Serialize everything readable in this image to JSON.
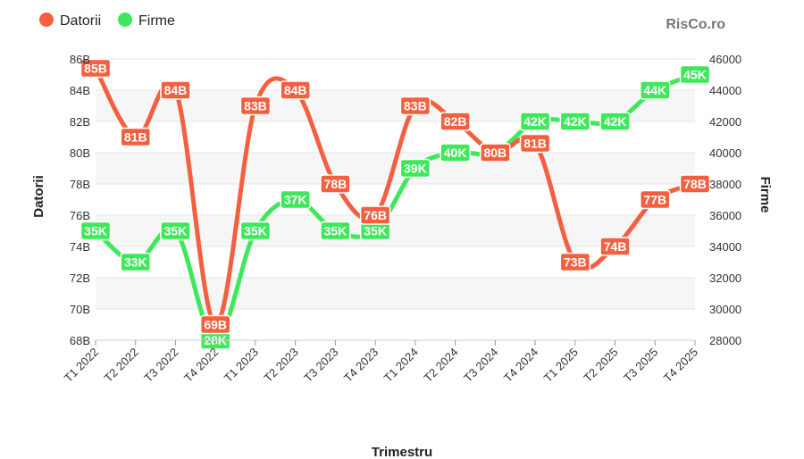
{
  "brand": "RisCo.ro",
  "colors": {
    "datorii": "#f4603f",
    "firme": "#3fe85a",
    "grid": "#e6e6e6",
    "band": "#f6f6f6"
  },
  "chart_data": {
    "type": "line",
    "categories": [
      "T1 2022",
      "T2 2022",
      "T3 2022",
      "T4 2022",
      "T1 2023",
      "T2 2023",
      "T3 2023",
      "T4 2023",
      "T1 2024",
      "T2 2024",
      "T3 2024",
      "T4 2024",
      "T1 2025",
      "T2 2025",
      "T3 2025",
      "T4 2025"
    ],
    "xlabel": "Trimestru",
    "ylabel_left": "Datorii",
    "ylabel_right": "Firme",
    "ylim_left": [
      68,
      86
    ],
    "ylim_right": [
      28000,
      46000
    ],
    "yticks_left": [
      "68B",
      "70B",
      "72B",
      "74B",
      "76B",
      "78B",
      "80B",
      "82B",
      "84B",
      "86B"
    ],
    "yticks_right": [
      "28000",
      "30000",
      "32000",
      "34000",
      "36000",
      "38000",
      "40000",
      "42000",
      "44000",
      "46000"
    ],
    "legend_position": "top-left",
    "grid": true,
    "series": [
      {
        "name": "Datorii",
        "axis": "left",
        "values": [
          85.4,
          81,
          84,
          69,
          83,
          84,
          78,
          76,
          83,
          82,
          80,
          80.6,
          73,
          74,
          77,
          78
        ],
        "labels": [
          "85B",
          "81B",
          "84B",
          "69B",
          "83B",
          "84B",
          "78B",
          "76B",
          "83B",
          "82B",
          "80B",
          "81B",
          "73B",
          "74B",
          "77B",
          "78B"
        ]
      },
      {
        "name": "Firme",
        "axis": "right",
        "values": [
          35000,
          33000,
          35000,
          28000,
          35000,
          37000,
          35000,
          35000,
          39000,
          40000,
          40000,
          42000,
          42000,
          42000,
          44000,
          45000
        ],
        "labels": [
          "35K",
          "33K",
          "35K",
          "28K",
          "35K",
          "37K",
          "35K",
          "35K",
          "39K",
          "40K",
          "40K",
          "42K",
          "42K",
          "42K",
          "44K",
          "45K"
        ]
      }
    ]
  }
}
